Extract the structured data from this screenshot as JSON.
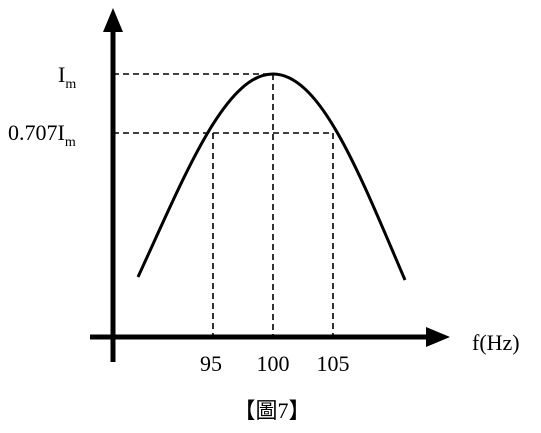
{
  "y_labels": [
    {
      "main": "I",
      "sub": "m"
    },
    {
      "main": "0.707I",
      "sub": "m"
    }
  ],
  "x_labels": [
    "95",
    "100",
    "105"
  ],
  "x_axis_label": "f(Hz)",
  "caption": "【圖7】"
}
